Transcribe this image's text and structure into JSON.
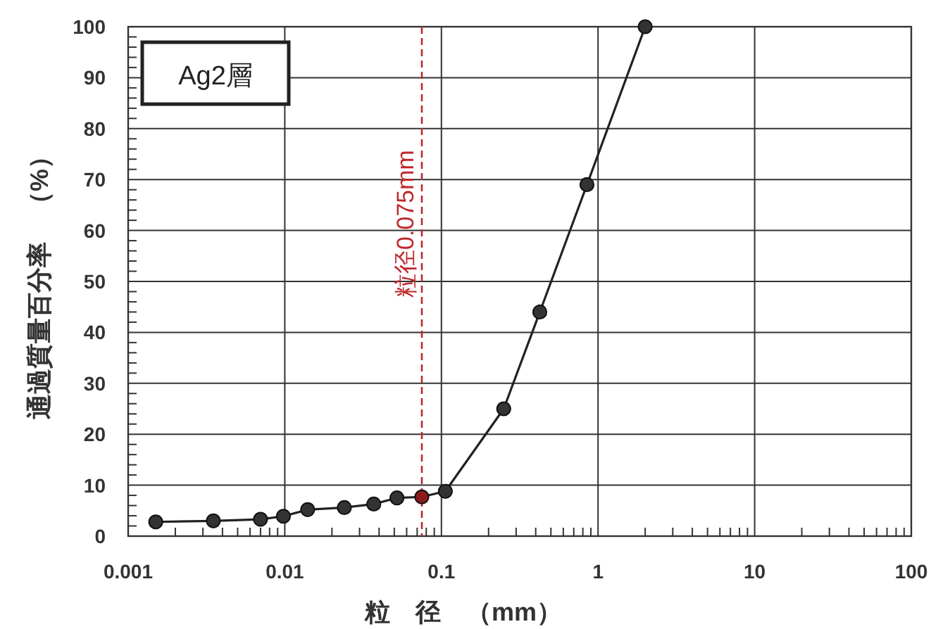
{
  "chart_data": {
    "type": "line",
    "xlabel": "粒　径　（mm）",
    "ylabel": "通過質量百分率　（%）",
    "log": "x",
    "grid": true,
    "marker": "circle",
    "line_style": "solid",
    "x": [
      0.0015,
      0.0035,
      0.007,
      0.0098,
      0.014,
      0.024,
      0.037,
      0.052,
      0.075,
      0.106,
      0.25,
      0.425,
      0.85,
      2
    ],
    "series": [
      {
        "color": "#222222",
        "colors": [
          "#333333",
          "#333333",
          "#333333",
          "#333333",
          "#333333",
          "#333333",
          "#333333",
          "#333333",
          "#8b1a1a",
          "#333333",
          "#333333",
          "#333333",
          "#333333",
          "#333333"
        ],
        "values": [
          2.8,
          3.0,
          3.3,
          3.9,
          5.2,
          5.6,
          6.3,
          7.5,
          7.7,
          8.8,
          25,
          44,
          69,
          100
        ]
      }
    ],
    "xlim": [
      0.001,
      100
    ],
    "ylim": [
      0,
      100
    ],
    "xticks": [
      0.001,
      0.01,
      0.1,
      1,
      10,
      100
    ],
    "yticks": [
      0,
      10,
      20,
      30,
      40,
      50,
      60,
      70,
      80,
      90,
      100
    ],
    "ref_lines": [
      {
        "axis": "x",
        "value": 0.075,
        "label": "粒径0.075mm",
        "color": "#c0282d",
        "line_style": "dashed"
      }
    ],
    "annotations": [
      "Ag2層"
    ]
  }
}
